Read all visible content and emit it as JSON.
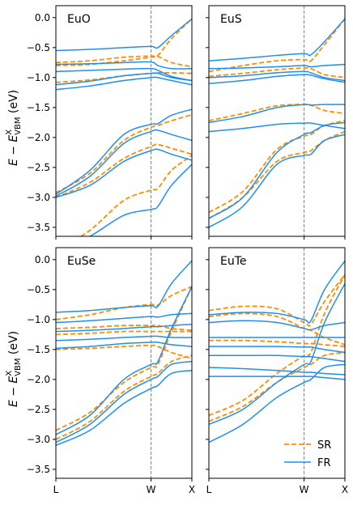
{
  "figure": {
    "ylabel": "E − E^X_VBM (eV)",
    "ylabel_main": "E − E",
    "ylabel_sup": "X",
    "ylabel_sub": "VBM",
    "ylabel_unit": " (eV)",
    "kpoints": [
      "L",
      "W",
      "X"
    ],
    "legend": [
      {
        "name": "SR",
        "color": "#ff8c00",
        "style": "dashed"
      },
      {
        "name": "FR",
        "color": "#1e8ff0",
        "style": "solid"
      }
    ],
    "colors": {
      "sr": "#ff8c00",
      "fr": "#1e8ff0",
      "vline": "#808080"
    }
  },
  "chart_data": [
    {
      "type": "line",
      "title": "EuO",
      "xlabel": "",
      "ylabel": "E − E^X_VBM (eV)",
      "x_ticks": [
        "L",
        "W",
        "X"
      ],
      "xlim": [
        0,
        1
      ],
      "ylim": [
        -3.65,
        0.2
      ],
      "yticks": [
        0.0,
        -0.5,
        -1.0,
        -1.5,
        -2.0,
        -2.5,
        -3.0,
        -3.5
      ],
      "ytick_labels": [
        "0.0",
        "−0.5",
        "−1.0",
        "−1.5",
        "−2.0",
        "−2.5",
        "−3.0",
        "−3.5"
      ],
      "grid": false,
      "x": [
        0.0,
        0.25,
        0.5,
        0.7,
        0.75,
        0.85,
        1.0
      ],
      "series": [
        {
          "name": "SR",
          "values": [
            -0.75,
            -0.72,
            -0.66,
            -0.64,
            -0.63,
            -0.35,
            -0.02
          ]
        },
        {
          "name": "SR",
          "values": [
            -0.8,
            -0.78,
            -0.72,
            -0.66,
            -0.65,
            -0.75,
            -0.82
          ]
        },
        {
          "name": "SR",
          "values": [
            -1.08,
            -1.04,
            -0.97,
            -0.93,
            -0.92,
            -0.92,
            -0.93
          ]
        },
        {
          "name": "SR",
          "values": [
            -2.92,
            -2.6,
            -2.05,
            -1.83,
            -1.8,
            -1.72,
            -1.62
          ]
        },
        {
          "name": "SR",
          "values": [
            -3.0,
            -2.75,
            -2.35,
            -2.15,
            -2.12,
            -2.18,
            -2.28
          ]
        },
        {
          "name": "SR",
          "values": [
            -3.9,
            -3.55,
            -3.05,
            -2.88,
            -2.85,
            -2.55,
            -2.3
          ]
        },
        {
          "name": "FR",
          "values": [
            -0.55,
            -0.53,
            -0.5,
            -0.48,
            -0.5,
            -0.3,
            -0.02
          ]
        },
        {
          "name": "FR",
          "values": [
            -0.78,
            -0.77,
            -0.75,
            -0.74,
            -0.8,
            -0.85,
            -0.85
          ]
        },
        {
          "name": "FR",
          "values": [
            -0.9,
            -0.88,
            -0.86,
            -0.85,
            -0.88,
            -0.98,
            -1.05
          ]
        },
        {
          "name": "FR",
          "values": [
            -1.12,
            -1.06,
            -0.97,
            -0.93,
            -0.93,
            -1.0,
            -1.05
          ]
        },
        {
          "name": "FR",
          "values": [
            -1.2,
            -1.14,
            -1.05,
            -1.0,
            -1.0,
            -1.05,
            -1.12
          ]
        },
        {
          "name": "FR",
          "values": [
            -2.95,
            -2.55,
            -1.95,
            -1.78,
            -1.77,
            -1.63,
            -1.53
          ]
        },
        {
          "name": "FR",
          "values": [
            -2.98,
            -2.65,
            -2.1,
            -1.9,
            -1.88,
            -1.95,
            -2.05
          ]
        },
        {
          "name": "FR",
          "values": [
            -3.0,
            -2.8,
            -2.4,
            -2.22,
            -2.2,
            -2.28,
            -2.38
          ]
        },
        {
          "name": "FR",
          "values": [
            -3.9,
            -3.65,
            -3.3,
            -3.2,
            -3.15,
            -2.8,
            -2.45
          ]
        }
      ]
    },
    {
      "type": "line",
      "title": "EuS",
      "xlabel": "",
      "ylabel": "",
      "x_ticks": [
        "L",
        "W",
        "X"
      ],
      "xlim": [
        0,
        1
      ],
      "ylim": [
        -3.65,
        0.2
      ],
      "grid": false,
      "x": [
        0.0,
        0.25,
        0.5,
        0.7,
        0.75,
        0.85,
        1.0
      ],
      "series": [
        {
          "name": "SR",
          "values": [
            -0.9,
            -0.8,
            -0.72,
            -0.7,
            -0.72,
            -0.45,
            -0.02
          ]
        },
        {
          "name": "SR",
          "values": [
            -0.98,
            -0.93,
            -0.87,
            -0.84,
            -0.85,
            -0.95,
            -1.0
          ]
        },
        {
          "name": "SR",
          "values": [
            -1.72,
            -1.6,
            -1.47,
            -1.45,
            -1.46,
            -1.55,
            -1.6
          ]
        },
        {
          "name": "SR",
          "values": [
            -3.25,
            -2.9,
            -2.2,
            -1.98,
            -1.95,
            -1.8,
            -1.72
          ]
        },
        {
          "name": "SR",
          "values": [
            -3.35,
            -3.0,
            -2.4,
            -2.25,
            -2.22,
            -2.05,
            -1.9
          ]
        },
        {
          "name": "FR",
          "values": [
            -0.72,
            -0.68,
            -0.63,
            -0.6,
            -0.62,
            -0.4,
            -0.02
          ]
        },
        {
          "name": "FR",
          "values": [
            -0.85,
            -0.84,
            -0.82,
            -0.8,
            -0.82,
            -0.8,
            -0.78
          ]
        },
        {
          "name": "FR",
          "values": [
            -1.0,
            -0.97,
            -0.92,
            -0.9,
            -0.92,
            -1.0,
            -1.05
          ]
        },
        {
          "name": "FR",
          "values": [
            -1.1,
            -1.05,
            -0.98,
            -0.95,
            -0.96,
            -1.02,
            -1.08
          ]
        },
        {
          "name": "FR",
          "values": [
            -1.75,
            -1.65,
            -1.5,
            -1.45,
            -1.46,
            -1.45,
            -1.45
          ]
        },
        {
          "name": "FR",
          "values": [
            -1.9,
            -1.85,
            -1.78,
            -1.76,
            -1.76,
            -1.8,
            -1.85
          ]
        },
        {
          "name": "FR",
          "values": [
            -3.35,
            -3.0,
            -2.25,
            -1.95,
            -1.92,
            -1.8,
            -1.75
          ]
        },
        {
          "name": "FR",
          "values": [
            -3.5,
            -3.15,
            -2.45,
            -2.3,
            -2.28,
            -2.05,
            -1.95
          ]
        }
      ]
    },
    {
      "type": "line",
      "title": "EuSe",
      "xlabel": "",
      "ylabel": "E − E^X_VBM (eV)",
      "x_ticks": [
        "L",
        "W",
        "X"
      ],
      "xlim": [
        0,
        1
      ],
      "ylim": [
        -3.65,
        0.2
      ],
      "yticks": [
        0.0,
        -0.5,
        -1.0,
        -1.5,
        -2.0,
        -2.5,
        -3.0,
        -3.5
      ],
      "ytick_labels": [
        "0.0",
        "−0.5",
        "−1.0",
        "−1.5",
        "−2.0",
        "−2.5",
        "−3.0",
        "−3.5"
      ],
      "grid": false,
      "x": [
        0.0,
        0.25,
        0.5,
        0.7,
        0.75,
        0.85,
        1.0
      ],
      "series": [
        {
          "name": "SR",
          "values": [
            -1.0,
            -0.92,
            -0.8,
            -0.75,
            -0.76,
            -0.6,
            -0.45
          ]
        },
        {
          "name": "SR",
          "values": [
            -1.15,
            -1.13,
            -1.1,
            -1.1,
            -1.1,
            -1.15,
            -1.18
          ]
        },
        {
          "name": "SR",
          "values": [
            -1.25,
            -1.23,
            -1.2,
            -1.2,
            -1.2,
            -1.2,
            -1.2
          ]
        },
        {
          "name": "SR",
          "values": [
            -1.5,
            -1.48,
            -1.45,
            -1.43,
            -1.45,
            -1.55,
            -1.65
          ]
        },
        {
          "name": "SR",
          "values": [
            -2.85,
            -2.55,
            -2.05,
            -1.8,
            -1.75,
            -1.2,
            -0.45
          ]
        },
        {
          "name": "SR",
          "values": [
            -3.0,
            -2.7,
            -2.2,
            -1.95,
            -1.9,
            -1.7,
            -1.6
          ]
        },
        {
          "name": "FR",
          "values": [
            -0.88,
            -0.85,
            -0.8,
            -0.77,
            -0.78,
            -0.4,
            -0.02
          ]
        },
        {
          "name": "FR",
          "values": [
            -1.05,
            -1.02,
            -0.98,
            -0.95,
            -0.96,
            -0.92,
            -0.9
          ]
        },
        {
          "name": "FR",
          "values": [
            -1.2,
            -1.18,
            -1.15,
            -1.12,
            -1.12,
            -1.1,
            -1.08
          ]
        },
        {
          "name": "FR",
          "values": [
            -1.35,
            -1.33,
            -1.3,
            -1.28,
            -1.28,
            -1.3,
            -1.3
          ]
        },
        {
          "name": "FR",
          "values": [
            -1.48,
            -1.45,
            -1.4,
            -1.38,
            -1.38,
            -1.42,
            -1.45
          ]
        },
        {
          "name": "FR",
          "values": [
            -2.92,
            -2.6,
            -2.0,
            -1.75,
            -1.7,
            -1.15,
            -0.45
          ]
        },
        {
          "name": "FR",
          "values": [
            -3.05,
            -2.75,
            -2.25,
            -2.0,
            -1.95,
            -1.75,
            -1.7
          ]
        },
        {
          "name": "FR",
          "values": [
            -3.1,
            -2.85,
            -2.4,
            -2.15,
            -2.1,
            -1.9,
            -1.85
          ]
        }
      ]
    },
    {
      "type": "line",
      "title": "EuTe",
      "xlabel": "",
      "ylabel": "",
      "x_ticks": [
        "L",
        "W",
        "X"
      ],
      "xlim": [
        0,
        1
      ],
      "ylim": [
        -3.65,
        0.2
      ],
      "grid": false,
      "x": [
        0.0,
        0.25,
        0.5,
        0.7,
        0.75,
        0.85,
        1.0
      ],
      "series": [
        {
          "name": "SR",
          "values": [
            -0.85,
            -0.78,
            -0.82,
            -1.05,
            -1.08,
            -0.7,
            -0.25
          ]
        },
        {
          "name": "SR",
          "values": [
            -0.95,
            -0.9,
            -0.95,
            -1.15,
            -1.18,
            -1.3,
            -1.42
          ]
        },
        {
          "name": "SR",
          "values": [
            -1.35,
            -1.35,
            -1.37,
            -1.4,
            -1.4,
            -1.42,
            -1.45
          ]
        },
        {
          "name": "SR",
          "values": [
            -2.6,
            -2.35,
            -1.9,
            -1.6,
            -1.55,
            -0.9,
            -0.25
          ]
        },
        {
          "name": "SR",
          "values": [
            -2.7,
            -2.45,
            -2.05,
            -1.8,
            -1.75,
            -1.6,
            -1.55
          ]
        },
        {
          "name": "FR",
          "values": [
            -0.92,
            -0.88,
            -0.9,
            -1.0,
            -1.02,
            -0.5,
            -0.02
          ]
        },
        {
          "name": "FR",
          "values": [
            -1.05,
            -1.02,
            -1.05,
            -1.15,
            -1.17,
            -1.1,
            -1.05
          ]
        },
        {
          "name": "FR",
          "values": [
            -1.3,
            -1.3,
            -1.3,
            -1.3,
            -1.3,
            -1.3,
            -1.3
          ]
        },
        {
          "name": "FR",
          "values": [
            -1.45,
            -1.45,
            -1.45,
            -1.46,
            -1.46,
            -1.5,
            -1.55
          ]
        },
        {
          "name": "FR",
          "values": [
            -1.6,
            -1.6,
            -1.6,
            -1.62,
            -1.62,
            -1.65,
            -1.7
          ]
        },
        {
          "name": "FR",
          "values": [
            -1.8,
            -1.82,
            -1.85,
            -1.88,
            -1.88,
            -1.9,
            -1.92
          ]
        },
        {
          "name": "FR",
          "values": [
            -1.95,
            -1.95,
            -1.95,
            -1.95,
            -1.95,
            -1.97,
            -2.0
          ]
        },
        {
          "name": "FR",
          "values": [
            -2.75,
            -2.5,
            -2.05,
            -1.75,
            -1.7,
            -1.05,
            -0.4
          ]
        },
        {
          "name": "FR",
          "values": [
            -3.05,
            -2.75,
            -2.3,
            -2.05,
            -2.0,
            -1.8,
            -1.75
          ]
        }
      ]
    }
  ]
}
